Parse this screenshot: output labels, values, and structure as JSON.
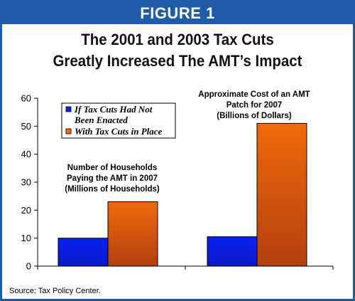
{
  "header": {
    "banner": "FIGURE 1",
    "title_line1": "The 2001 and 2003 Tax Cuts",
    "title_line2": "Greatly Increased The AMT’s Impact"
  },
  "source": "Source:  Tax Policy Center.",
  "chart_data": {
    "type": "bar",
    "categories": [
      "Number of Households Paying the AMT in 2007 (Millions of Households)",
      "Approximate Cost of an AMT Patch for 2007 (Billions of Dollars)"
    ],
    "series": [
      {
        "name": "If Tax Cuts Had Not Been Enacted",
        "values": [
          10,
          10.5
        ],
        "color": "#0a22f0"
      },
      {
        "name": "With Tax Cuts in Place",
        "values": [
          23,
          51
        ],
        "color": "#f06a0a"
      }
    ],
    "annotations": [
      {
        "lines": [
          "Number of Households",
          "Paying the AMT in 2007",
          "(Millions of Households)"
        ]
      },
      {
        "lines": [
          "Approximate Cost of an AMT",
          "Patch for 2007",
          "(Billions of Dollars)"
        ]
      }
    ],
    "legend": {
      "entries": [
        {
          "lines": [
            "If Tax Cuts Had Not",
            "Been Enacted"
          ]
        },
        {
          "lines": [
            "With Tax Cuts in Place"
          ]
        }
      ],
      "position": "top-left"
    },
    "ylim": [
      0,
      60
    ],
    "yticks": [
      0,
      10,
      20,
      30,
      40,
      50,
      60
    ],
    "grid": false
  }
}
